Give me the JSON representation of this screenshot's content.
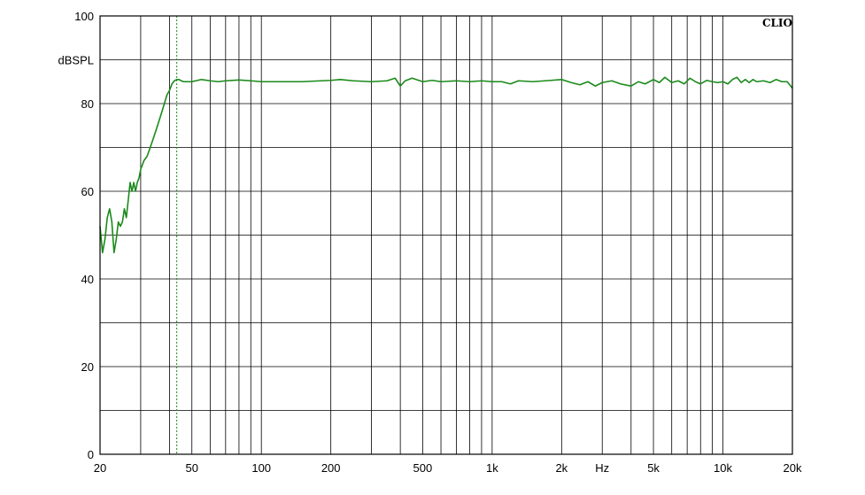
{
  "chart_data": {
    "type": "line",
    "brand": "CLIO",
    "ylabel": "dBSPL",
    "xunit_label": "Hz",
    "x_scale": "log",
    "xlim": [
      20,
      20000
    ],
    "ylim": [
      0,
      100
    ],
    "grid": true,
    "x_ticks": [
      {
        "value": 20,
        "label": "20"
      },
      {
        "value": 50,
        "label": "50"
      },
      {
        "value": 100,
        "label": "100"
      },
      {
        "value": 200,
        "label": "200"
      },
      {
        "value": 500,
        "label": "500"
      },
      {
        "value": 1000,
        "label": "1k"
      },
      {
        "value": 2000,
        "label": "2k"
      },
      {
        "value": 5000,
        "label": "5k"
      },
      {
        "value": 10000,
        "label": "10k"
      },
      {
        "value": 20000,
        "label": "20k"
      }
    ],
    "x_gridlines": [
      20,
      30,
      40,
      50,
      60,
      70,
      80,
      90,
      100,
      200,
      300,
      400,
      500,
      600,
      700,
      800,
      900,
      1000,
      2000,
      3000,
      4000,
      5000,
      6000,
      7000,
      8000,
      9000,
      10000,
      20000
    ],
    "y_ticks": [
      {
        "value": 0,
        "label": "0"
      },
      {
        "value": 20,
        "label": "20"
      },
      {
        "value": 40,
        "label": "40"
      },
      {
        "value": 60,
        "label": "60"
      },
      {
        "value": 80,
        "label": "80"
      },
      {
        "value": 100,
        "label": "100"
      }
    ],
    "y_gridlines": [
      10,
      20,
      30,
      40,
      50,
      60,
      70,
      80,
      90
    ],
    "marker_frequency": 43,
    "series_color": "#1a8a1a",
    "marker_color": "#1a8a1a",
    "series": [
      {
        "x": [
          20,
          20.5,
          21,
          21.5,
          22,
          22.5,
          23,
          23.5,
          24,
          24.5,
          25,
          25.5,
          26,
          26.5,
          27,
          27.5,
          28,
          28.5,
          29,
          29.5,
          30,
          31,
          32,
          33,
          34,
          35,
          36,
          37,
          38,
          39,
          40,
          41,
          42,
          43,
          44,
          45,
          46,
          47,
          48,
          50,
          55,
          60,
          65,
          70,
          80,
          90,
          100,
          120,
          150,
          200,
          220,
          250,
          300,
          350,
          380,
          400,
          420,
          450,
          500,
          550,
          600,
          700,
          800,
          900,
          1000,
          1100,
          1200,
          1300,
          1500,
          1800,
          2000,
          2200,
          2400,
          2600,
          2800,
          3000,
          3300,
          3600,
          4000,
          4300,
          4600,
          5000,
          5300,
          5600,
          6000,
          6400,
          6800,
          7200,
          7600,
          8000,
          8500,
          9000,
          9500,
          10000,
          10500,
          11000,
          11500,
          12000,
          12500,
          13000,
          13500,
          14000,
          15000,
          16000,
          17000,
          18000,
          19000,
          20000
        ],
        "y": [
          52,
          46,
          49,
          54,
          56,
          53,
          46,
          49,
          53,
          52,
          53,
          56,
          54,
          58,
          62,
          60,
          62,
          60,
          62,
          63,
          65,
          67,
          68,
          70,
          72,
          74,
          76,
          78,
          80,
          82,
          83,
          84.5,
          85.2,
          85.5,
          85.5,
          85.2,
          85.0,
          85.0,
          85.0,
          85.0,
          85.5,
          85.2,
          85.0,
          85.2,
          85.4,
          85.2,
          85.0,
          85.0,
          85.0,
          85.3,
          85.5,
          85.2,
          85.0,
          85.2,
          85.8,
          84.0,
          85.2,
          85.8,
          85.0,
          85.3,
          85.0,
          85.2,
          85.0,
          85.2,
          85.0,
          85.0,
          84.5,
          85.2,
          85.0,
          85.3,
          85.5,
          84.8,
          84.3,
          85.0,
          84.0,
          84.8,
          85.2,
          84.5,
          84.0,
          85.0,
          84.5,
          85.5,
          84.8,
          86.0,
          84.8,
          85.2,
          84.5,
          85.8,
          85.0,
          84.5,
          85.3,
          85.0,
          84.8,
          85.0,
          84.5,
          85.5,
          86.0,
          84.8,
          85.5,
          84.8,
          85.5,
          85.0,
          85.2,
          84.8,
          85.5,
          85.0,
          85.0,
          83.5
        ]
      }
    ]
  }
}
